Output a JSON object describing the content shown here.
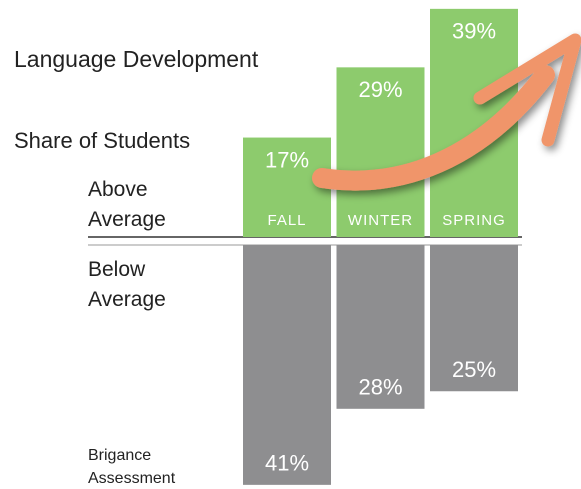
{
  "chart_data": {
    "type": "bar",
    "title": "Language Development",
    "subtitle": "Share of Students",
    "annotation": "Brigance Assessment",
    "categories": [
      "FALL",
      "WINTER",
      "SPRING"
    ],
    "series": [
      {
        "name": "Above Average",
        "color": "#8dcb6d",
        "values": [
          17,
          29,
          39
        ],
        "value_labels": [
          "17%",
          "29%",
          "39%"
        ]
      },
      {
        "name": "Below Average",
        "color": "#8e8e90",
        "values": [
          41,
          28,
          25
        ],
        "value_labels": [
          "41%",
          "28%",
          "25%"
        ]
      }
    ]
  }
}
